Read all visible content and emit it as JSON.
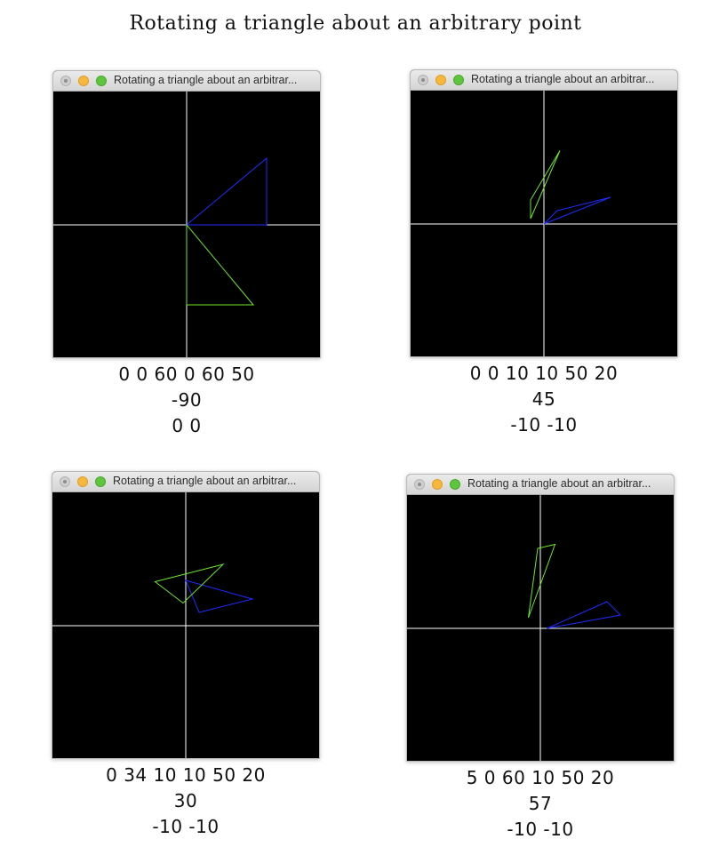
{
  "page": {
    "title": "Rotating a triangle about an arbitrary point"
  },
  "colors": {
    "axis": "#ffffff",
    "original": "#1e2cff",
    "rotated": "#6be82a",
    "canvas_bg": "#000000"
  },
  "panels": [
    {
      "window_title": "Rotating a triangle about an arbitrar...",
      "params": {
        "triangle": "0 0 60 0 60 50",
        "angle": "-90",
        "pivot": "0 0"
      },
      "original_triangle": [
        [
          0,
          0
        ],
        [
          60,
          0
        ],
        [
          60,
          50
        ]
      ],
      "rotated_triangle": [
        [
          0,
          0
        ],
        [
          0,
          -60
        ],
        [
          50,
          -60
        ]
      ]
    },
    {
      "window_title": "Rotating a triangle about an arbitrar...",
      "params": {
        "triangle": "0 0 10 10 50 20",
        "angle": "45",
        "pivot": "-10 -10"
      },
      "original_triangle": [
        [
          0,
          0
        ],
        [
          10,
          10
        ],
        [
          50,
          20
        ]
      ],
      "rotated_triangle": [
        [
          -10,
          4
        ],
        [
          -10,
          18
        ],
        [
          12,
          55
        ]
      ]
    },
    {
      "window_title": "Rotating a triangle about an arbitrar...",
      "params": {
        "triangle": "0 34 10 10 50 20",
        "angle": "30",
        "pivot": "-10 -10"
      },
      "original_triangle": [
        [
          0,
          34
        ],
        [
          10,
          10
        ],
        [
          50,
          20
        ]
      ],
      "rotated_triangle": [
        [
          -23,
          33
        ],
        [
          -2,
          17
        ],
        [
          28,
          46
        ]
      ]
    },
    {
      "window_title": "Rotating a triangle about an arbitrar...",
      "params": {
        "triangle": "5 0 60 10 50 20",
        "angle": "57",
        "pivot": "-10 -10"
      },
      "original_triangle": [
        [
          5,
          0
        ],
        [
          60,
          10
        ],
        [
          50,
          20
        ]
      ],
      "rotated_triangle": [
        [
          -9,
          8
        ],
        [
          -2,
          60
        ],
        [
          11,
          63
        ]
      ]
    }
  ]
}
